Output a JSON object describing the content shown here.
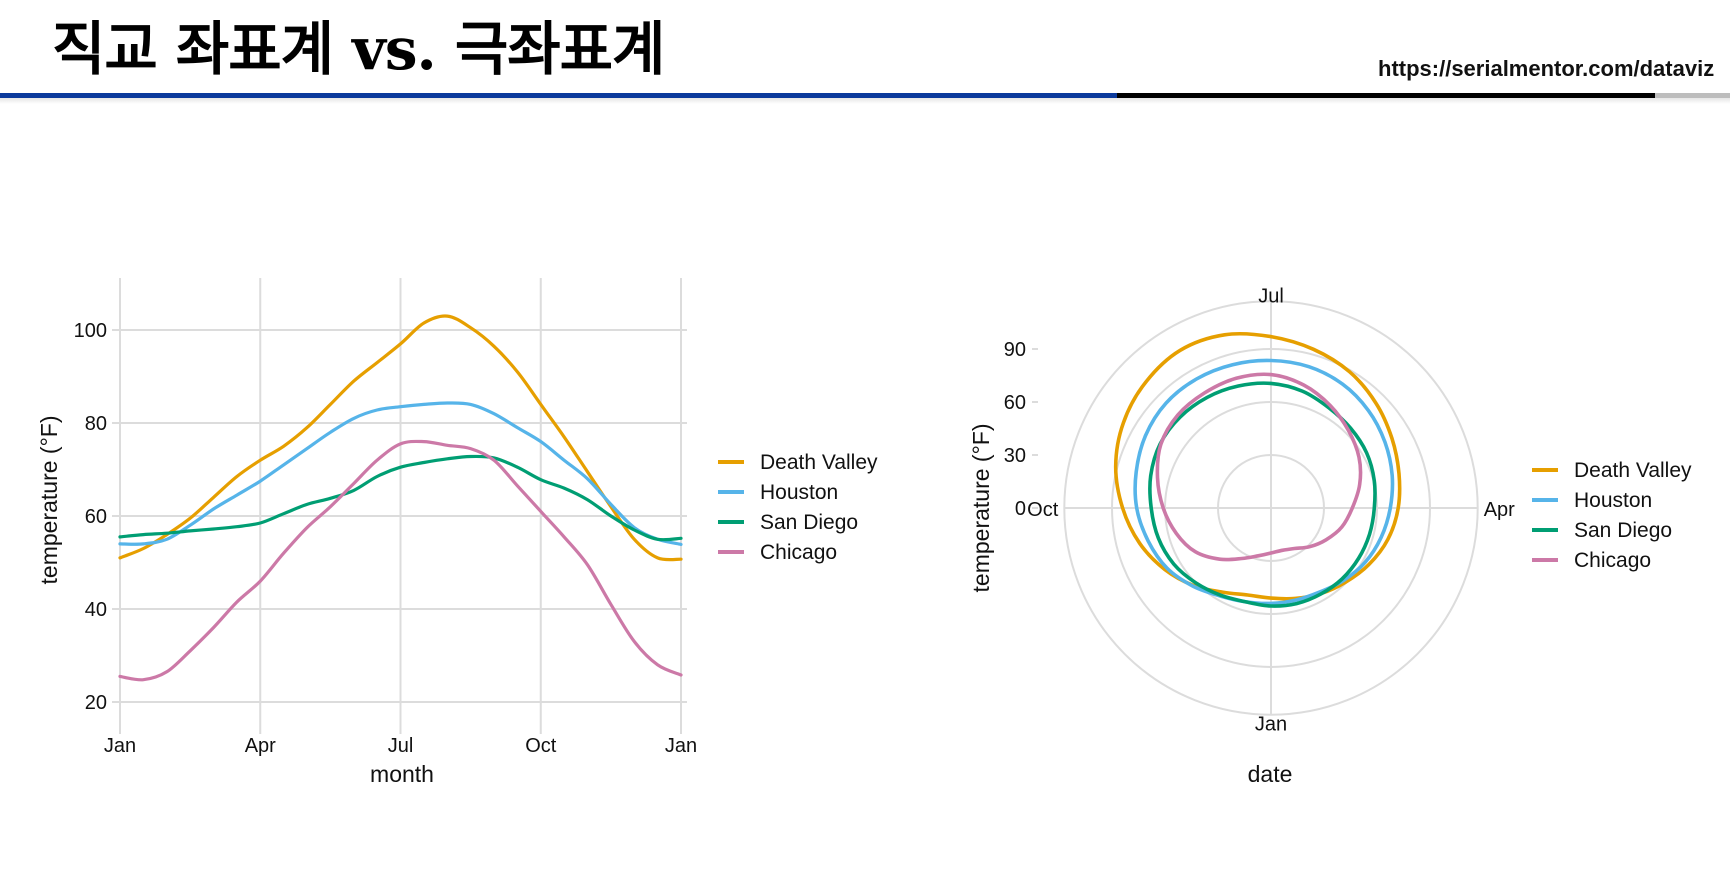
{
  "header": {
    "title": "직교 좌표계 vs. 극좌표계",
    "url": "https://serialmentor.com/dataviz",
    "bar_colors": [
      "#0b3a9c",
      "#000000",
      "#bdbdbd"
    ]
  },
  "chart_data": [
    {
      "type": "line",
      "title": "",
      "xlabel": "month",
      "ylabel": "temperature (°F)",
      "x_ticks": [
        {
          "value": 0,
          "label": "Jan"
        },
        {
          "value": 3,
          "label": "Apr"
        },
        {
          "value": 6,
          "label": "Jul"
        },
        {
          "value": 9,
          "label": "Oct"
        },
        {
          "value": 12,
          "label": "Jan"
        }
      ],
      "y_ticks": [
        20,
        40,
        60,
        80,
        100
      ],
      "xlim": [
        0,
        12
      ],
      "ylim": [
        17,
        111
      ],
      "grid": true,
      "legend": "right",
      "x": [
        0,
        0.5,
        1,
        1.5,
        2,
        2.5,
        3,
        3.5,
        4,
        4.5,
        5,
        5.5,
        6,
        6.5,
        7,
        7.5,
        8,
        8.5,
        9,
        9.5,
        10,
        10.5,
        11,
        11.5,
        12
      ],
      "series": [
        {
          "name": "Death Valley",
          "color": "#E69F00",
          "values": [
            51,
            53,
            56,
            59.5,
            64,
            68.5,
            72,
            75,
            79,
            84,
            89,
            93,
            97,
            101.5,
            103,
            100.5,
            96.5,
            91,
            84,
            77,
            69.5,
            62,
            55,
            51,
            50.7
          ]
        },
        {
          "name": "Houston",
          "color": "#56B4E9",
          "values": [
            54,
            54,
            55,
            58,
            61.5,
            64.5,
            67.5,
            71,
            74.5,
            78,
            81,
            82.8,
            83.5,
            84,
            84.3,
            84,
            82,
            79,
            76,
            72,
            68,
            62.5,
            57.5,
            55,
            53.9
          ]
        },
        {
          "name": "San Diego",
          "color": "#009E73",
          "values": [
            55.5,
            56,
            56.3,
            56.8,
            57.2,
            57.7,
            58.5,
            60.5,
            62.5,
            63.8,
            65.5,
            68.5,
            70.5,
            71.5,
            72.3,
            72.8,
            72.5,
            70.5,
            67.8,
            66,
            63.5,
            60,
            57,
            55,
            55.2
          ]
        },
        {
          "name": "Chicago",
          "color": "#CC79A7",
          "values": [
            25.5,
            24.8,
            26.5,
            31,
            36,
            41.5,
            46,
            52,
            57.5,
            62,
            67,
            72,
            75.5,
            76,
            75.2,
            74.5,
            72,
            66.5,
            61,
            55.5,
            49.5,
            41,
            33,
            28,
            25.8
          ]
        }
      ]
    },
    {
      "type": "line",
      "coord": "polar",
      "title": "",
      "xlabel": "date",
      "ylabel": "temperature (°F)",
      "angle_ticks": [
        {
          "value": 0,
          "label": "Jan"
        },
        {
          "value": 3,
          "label": "Apr"
        },
        {
          "value": 6,
          "label": "Jul"
        },
        {
          "value": 9,
          "label": "Oct"
        }
      ],
      "r_ticks": [
        0,
        30,
        60,
        90
      ],
      "rlim": [
        0,
        117
      ],
      "grid": true,
      "legend": "right",
      "x": [
        0,
        0.5,
        1,
        1.5,
        2,
        2.5,
        3,
        3.5,
        4,
        4.5,
        5,
        5.5,
        6,
        6.5,
        7,
        7.5,
        8,
        8.5,
        9,
        9.5,
        10,
        10.5,
        11,
        11.5,
        12
      ],
      "series": [
        {
          "name": "Death Valley",
          "color": "#E69F00",
          "values": [
            51,
            53,
            56,
            59.5,
            64,
            68.5,
            72,
            75,
            79,
            84,
            89,
            93,
            97,
            101.5,
            103,
            100.5,
            96.5,
            91,
            84,
            77,
            69.5,
            62,
            55,
            51,
            50.7
          ]
        },
        {
          "name": "Houston",
          "color": "#56B4E9",
          "values": [
            54,
            54,
            55,
            58,
            61.5,
            64.5,
            67.5,
            71,
            74.5,
            78,
            81,
            82.8,
            83.5,
            84,
            84.3,
            84,
            82,
            79,
            76,
            72,
            68,
            62.5,
            57.5,
            55,
            53.9
          ]
        },
        {
          "name": "San Diego",
          "color": "#009E73",
          "values": [
            55.5,
            56,
            56.3,
            56.8,
            57.2,
            57.7,
            58.5,
            60.5,
            62.5,
            63.8,
            65.5,
            68.5,
            70.5,
            71.5,
            72.3,
            72.8,
            72.5,
            70.5,
            67.8,
            66,
            63.5,
            60,
            57,
            55,
            55.2
          ]
        },
        {
          "name": "Chicago",
          "color": "#CC79A7",
          "values": [
            25.5,
            24.8,
            26.5,
            31,
            36,
            41.5,
            46,
            52,
            57.5,
            62,
            67,
            72,
            75.5,
            76,
            75.2,
            74.5,
            72,
            66.5,
            61,
            55.5,
            49.5,
            41,
            33,
            28,
            25.8
          ]
        }
      ]
    }
  ]
}
